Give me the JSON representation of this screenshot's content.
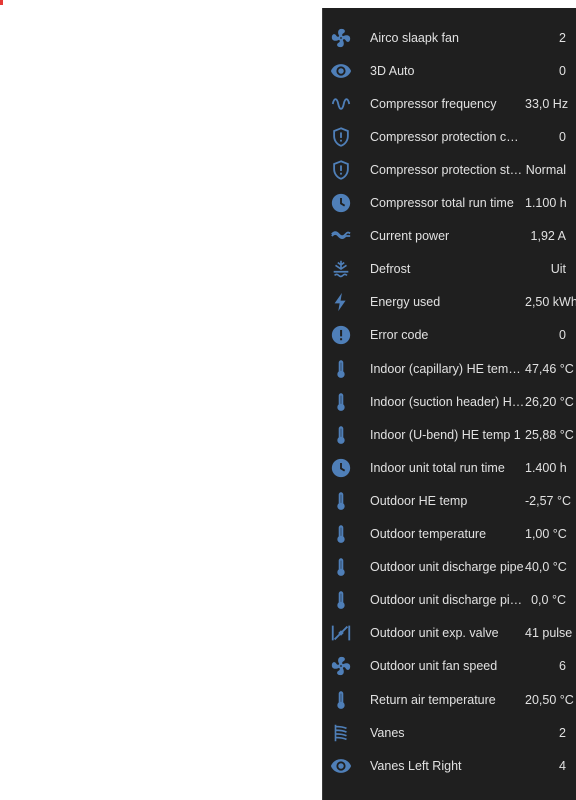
{
  "colors": {
    "icon": "#4f7fb8",
    "text": "#e1e1e1",
    "panel": "#1f1f1f"
  },
  "entities": [
    {
      "icon": "fan-icon",
      "label": "Airco slaapk fan",
      "value": "2"
    },
    {
      "icon": "eye-icon",
      "label": "3D Auto",
      "value": "0"
    },
    {
      "icon": "sine-wave-icon",
      "label": "Compressor frequency",
      "value": "33,0 Hz"
    },
    {
      "icon": "shield-alert-icon",
      "label": "Compressor protection code",
      "value": "0"
    },
    {
      "icon": "shield-alert-icon",
      "label": "Compressor protection sta…",
      "value": "Normal"
    },
    {
      "icon": "clock-icon",
      "label": "Compressor total run time",
      "value": "1.100 h"
    },
    {
      "icon": "ac-current-icon",
      "label": "Current power",
      "value": "1,92 A"
    },
    {
      "icon": "defrost-icon",
      "label": "Defrost",
      "value": "Uit"
    },
    {
      "icon": "lightning-bolt-icon",
      "label": "Energy used",
      "value": "2,50 kWh"
    },
    {
      "icon": "alert-circle-icon",
      "label": "Error code",
      "value": "0"
    },
    {
      "icon": "thermometer-icon",
      "label": "Indoor (capillary) HE tem…",
      "value": "47,46 °C"
    },
    {
      "icon": "thermometer-icon",
      "label": "Indoor (suction header) H…",
      "value": "26,20 °C"
    },
    {
      "icon": "thermometer-icon",
      "label": "Indoor (U-bend) HE temp 1",
      "value": "25,88 °C"
    },
    {
      "icon": "clock-icon",
      "label": "Indoor unit total run time",
      "value": "1.400 h"
    },
    {
      "icon": "thermometer-icon",
      "label": "Outdoor HE temp",
      "value": "-2,57 °C"
    },
    {
      "icon": "thermometer-icon",
      "label": "Outdoor temperature",
      "value": "1,00 °C"
    },
    {
      "icon": "thermometer-icon",
      "label": "Outdoor unit discharge pipe",
      "value": "40,0 °C"
    },
    {
      "icon": "thermometer-icon",
      "label": "Outdoor unit discharge pipe …",
      "value": "0,0 °C"
    },
    {
      "icon": "valve-icon",
      "label": "Outdoor unit exp. valve",
      "value": "41 pulse"
    },
    {
      "icon": "fan-icon",
      "label": "Outdoor unit fan speed",
      "value": "6"
    },
    {
      "icon": "thermometer-icon",
      "label": "Return air temperature",
      "value": "20,50 °C"
    },
    {
      "icon": "vanes-icon",
      "label": "Vanes",
      "value": "2"
    },
    {
      "icon": "eye-icon",
      "label": "Vanes Left Right",
      "value": "4"
    }
  ]
}
